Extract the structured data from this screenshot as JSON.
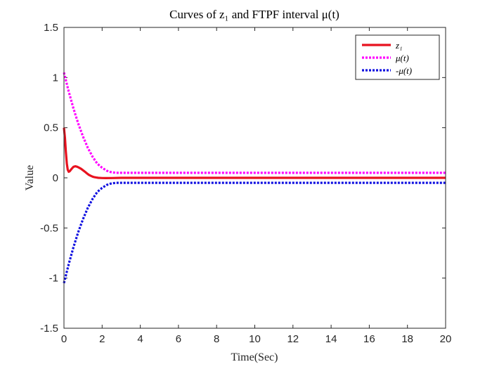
{
  "chart_data": {
    "type": "line",
    "title": "Curves of z₁ and FTPF interval μ(t)",
    "xlabel": "Time(Sec)",
    "ylabel": "Value",
    "xlim": [
      0,
      20
    ],
    "ylim": [
      -1.5,
      1.5
    ],
    "xticks": [
      0,
      2,
      4,
      6,
      8,
      10,
      12,
      14,
      16,
      18,
      20
    ],
    "yticks": [
      -1.5,
      -1,
      -0.5,
      0,
      0.5,
      1,
      1.5
    ],
    "xtick_labels": [
      "0",
      "2",
      "4",
      "6",
      "8",
      "10",
      "12",
      "14",
      "16",
      "18",
      "20"
    ],
    "ytick_labels": [
      "-1.5",
      "-1",
      "-0.5",
      "0",
      "0.5",
      "1",
      "1.5"
    ],
    "grid": false,
    "legend_position": "top-right",
    "series": [
      {
        "name": "z₁",
        "color": "#e8121f",
        "style": "solid",
        "x": [
          0,
          0.05,
          0.1,
          0.15,
          0.2,
          0.25,
          0.3,
          0.4,
          0.5,
          0.6,
          0.7,
          0.8,
          0.9,
          1.0,
          1.1,
          1.2,
          1.3,
          1.4,
          1.5,
          1.6,
          1.7,
          1.8,
          2.0,
          2.2,
          2.5,
          3.0,
          4.0,
          20
        ],
        "y": [
          0.5,
          0.4,
          0.26,
          0.14,
          0.08,
          0.06,
          0.065,
          0.09,
          0.11,
          0.115,
          0.11,
          0.1,
          0.09,
          0.075,
          0.06,
          0.045,
          0.03,
          0.02,
          0.012,
          0.006,
          0.003,
          0.0,
          -0.002,
          -0.003,
          -0.002,
          0.0,
          0.0,
          0.0
        ]
      },
      {
        "name": "μ(t)",
        "color": "#ff00ff",
        "style": "dotted",
        "x": [
          0,
          0.25,
          0.5,
          0.75,
          1.0,
          1.25,
          1.5,
          1.75,
          2.0,
          2.25,
          2.5,
          2.75,
          3.0,
          4.0,
          20
        ],
        "y": [
          1.05,
          0.86,
          0.69,
          0.54,
          0.41,
          0.3,
          0.21,
          0.14,
          0.1,
          0.07,
          0.055,
          0.05,
          0.05,
          0.05,
          0.05
        ]
      },
      {
        "name": "-μ(t)",
        "color": "#1010e0",
        "style": "dotted",
        "x": [
          0,
          0.25,
          0.5,
          0.75,
          1.0,
          1.25,
          1.5,
          1.75,
          2.0,
          2.25,
          2.5,
          2.75,
          3.0,
          4.0,
          20
        ],
        "y": [
          -1.05,
          -0.86,
          -0.69,
          -0.54,
          -0.41,
          -0.3,
          -0.21,
          -0.14,
          -0.1,
          -0.07,
          -0.055,
          -0.05,
          -0.05,
          -0.05,
          -0.05
        ]
      }
    ]
  }
}
